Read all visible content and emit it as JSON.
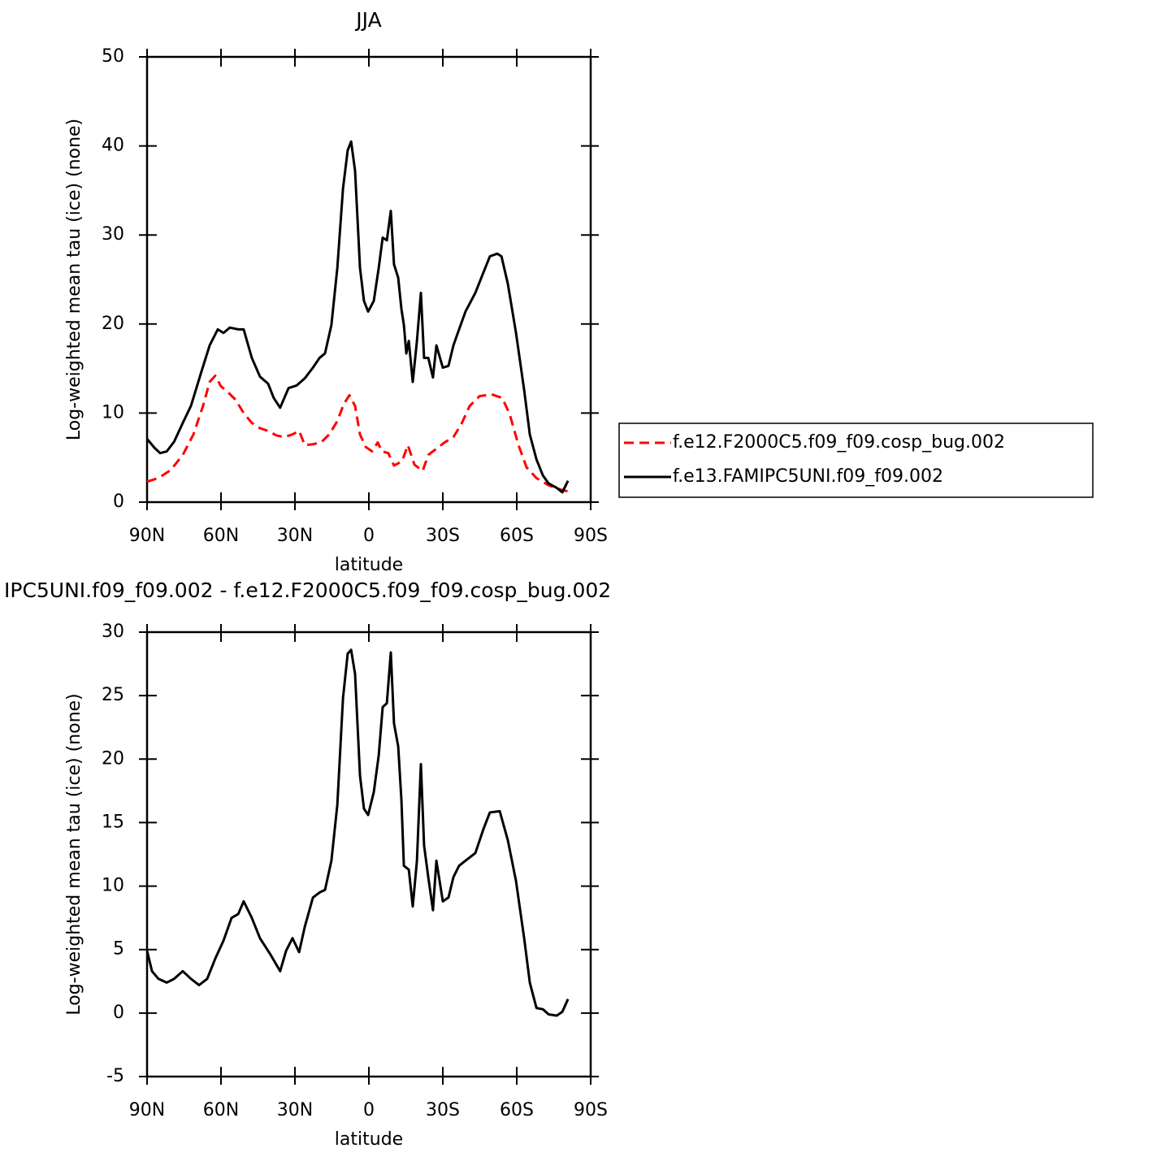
{
  "chart_data": [
    {
      "type": "line",
      "title": "JJA",
      "xlabel": "latitude",
      "ylabel": "Log-weighted mean tau (ice) (none)",
      "xlim": [
        90,
        -90
      ],
      "xticks": [
        {
          "value": 90,
          "label": "90N"
        },
        {
          "value": 60,
          "label": "60N"
        },
        {
          "value": 30,
          "label": "30N"
        },
        0,
        {
          "value": -30,
          "label": "30S"
        },
        {
          "value": -60,
          "label": "60S"
        },
        {
          "value": -90,
          "label": "90S"
        }
      ],
      "ylim": [
        0,
        50
      ],
      "yticks": [
        0,
        10,
        20,
        30,
        40,
        50
      ],
      "legend": "right",
      "series": [
        {
          "name": "f.e12.F2000C5.f09_f09.cosp_bug.002",
          "color": "#ff0000",
          "style": "dashed",
          "x": [
            90,
            85.4,
            80.4,
            75.5,
            71.2,
            67.3,
            64.6,
            62.3,
            60,
            57.4,
            54.1,
            50.8,
            47.5,
            44.2,
            40.9,
            37.6,
            34.3,
            31,
            28.3,
            26,
            22.7,
            19.4,
            16.1,
            12.8,
            10.2,
            7.9,
            5.6,
            3.6,
            1.3,
            -1.3,
            -3.6,
            -5.3,
            -7.9,
            -10.2,
            -13.5,
            -15.8,
            -18.5,
            -21.8,
            -24.1,
            -27.4,
            -30.7,
            -34.3,
            -37.6,
            -40.9,
            -44.9,
            -49.8,
            -54.1,
            -57.1,
            -60.7,
            -64,
            -68,
            -72.9,
            -77.9,
            -80.8
          ],
          "values": [
            2.3,
            2.7,
            3.6,
            5.3,
            7.6,
            10.8,
            13.5,
            14.2,
            13,
            12.4,
            11.5,
            10,
            8.9,
            8.3,
            8,
            7.5,
            7.3,
            7.6,
            8,
            6.4,
            6.5,
            6.7,
            7.6,
            9.1,
            11,
            12,
            10.8,
            7.6,
            6.2,
            5.7,
            6.7,
            5.7,
            5.5,
            4.1,
            4.6,
            6.4,
            4.2,
            3.5,
            5.3,
            6,
            6.7,
            7.3,
            8.8,
            10.8,
            11.9,
            12.1,
            11.7,
            9.9,
            6.4,
            3.9,
            2.7,
            1.9,
            1.4,
            1.2
          ]
        },
        {
          "name": "f.e13.FAMIPC5UNI.f09_f09.002",
          "color": "#000000",
          "style": "solid",
          "x": [
            90,
            87,
            84.7,
            82,
            79,
            75.5,
            72.2,
            68,
            64.6,
            61.3,
            59,
            56.4,
            53,
            50.8,
            47.5,
            44.2,
            40.9,
            38.6,
            36,
            32.6,
            29.3,
            26,
            22.7,
            20,
            17.8,
            15.2,
            12.8,
            10.5,
            8.6,
            7.2,
            5.6,
            3.6,
            2,
            0.3,
            -2,
            -4,
            -5.6,
            -7.3,
            -8.9,
            -10.2,
            -11.9,
            -13.2,
            -14.2,
            -15.2,
            -16.2,
            -17.8,
            -19.5,
            -21.1,
            -22.4,
            -24.1,
            -26,
            -27.4,
            -30,
            -32.3,
            -34.3,
            -36.6,
            -39.2,
            -43.2,
            -46.5,
            -49.1,
            -52.1,
            -53.8,
            -56.4,
            -59.7,
            -63,
            -65.3,
            -68,
            -70.6,
            -72.9,
            -76.2,
            -78.5,
            -80.8
          ],
          "values": [
            7.1,
            6.1,
            5.5,
            5.7,
            6.8,
            8.9,
            10.8,
            14.6,
            17.6,
            19.4,
            19,
            19.6,
            19.4,
            19.4,
            16.2,
            14.1,
            13.3,
            11.7,
            10.6,
            12.8,
            13.1,
            13.9,
            15.1,
            16.2,
            16.7,
            19.9,
            26.3,
            35.2,
            39.5,
            40.5,
            37.2,
            26.3,
            22.6,
            21.4,
            22.6,
            26.3,
            29.7,
            29.4,
            32.7,
            26.7,
            25.2,
            21.7,
            19.9,
            16.7,
            18.1,
            13.5,
            18.1,
            23.5,
            16.2,
            16.2,
            14,
            17.6,
            15.1,
            15.3,
            17.6,
            19.4,
            21.4,
            23.5,
            25.8,
            27.6,
            27.9,
            27.6,
            24.5,
            19,
            12.6,
            7.6,
            4.8,
            3,
            2.1,
            1.6,
            1.1,
            2.4
          ]
        }
      ]
    },
    {
      "type": "line",
      "title": "IPC5UNI.f09_f09.002 - f.e12.F2000C5.f09_f09.cosp_bug.002",
      "xlabel": "latitude",
      "ylabel": "Log-weighted mean tau (ice) (none)",
      "xlim": [
        90,
        -90
      ],
      "xticks": [
        {
          "value": 90,
          "label": "90N"
        },
        {
          "value": 60,
          "label": "60N"
        },
        {
          "value": 30,
          "label": "30N"
        },
        0,
        {
          "value": -30,
          "label": "30S"
        },
        {
          "value": -60,
          "label": "60S"
        },
        {
          "value": -90,
          "label": "90S"
        }
      ],
      "ylim": [
        -5,
        30
      ],
      "yticks": [
        -5,
        0,
        5,
        10,
        15,
        20,
        25,
        30
      ],
      "color": "#000000",
      "x": [
        90,
        88,
        85.4,
        82,
        79,
        75.5,
        72.2,
        68.9,
        65.6,
        62.3,
        59,
        55.7,
        53,
        50.8,
        47.5,
        44.2,
        39.9,
        36,
        33.6,
        31,
        28.3,
        26,
        22.7,
        20,
        17.8,
        15.2,
        12.8,
        10.5,
        8.6,
        7.2,
        5.6,
        3.6,
        2,
        0.3,
        -2,
        -4,
        -5.6,
        -7.3,
        -8.9,
        -10.2,
        -11.9,
        -13.2,
        -14.2,
        -16.2,
        -17.8,
        -19.5,
        -21.1,
        -22.4,
        -24.1,
        -26,
        -27.4,
        -30,
        -32.3,
        -34.3,
        -36.6,
        -39.2,
        -43.2,
        -46.5,
        -49.1,
        -53.1,
        -56.4,
        -59.7,
        -63,
        -65.3,
        -68,
        -70.6,
        -72.9,
        -76.2,
        -78.5,
        -80.8
      ],
      "values": [
        4.9,
        3.3,
        2.7,
        2.4,
        2.7,
        3.3,
        2.7,
        2.2,
        2.7,
        4.3,
        5.7,
        7.5,
        7.8,
        8.8,
        7.5,
        5.9,
        4.6,
        3.3,
        4.9,
        5.9,
        4.8,
        6.8,
        9.1,
        9.5,
        9.7,
        12,
        16.4,
        24.8,
        28.3,
        28.6,
        26.7,
        18.7,
        16.1,
        15.6,
        17.4,
        20.3,
        24.1,
        24.4,
        28.4,
        22.8,
        21,
        16.8,
        11.6,
        11.3,
        8.4,
        12,
        19.6,
        13.2,
        10.7,
        8.1,
        12,
        8.8,
        9.1,
        10.7,
        11.6,
        12,
        12.6,
        14.5,
        15.8,
        15.9,
        13.6,
        10.4,
        5.9,
        2.4,
        0.4,
        0.3,
        -0.1,
        -0.2,
        0.1,
        1.1
      ]
    }
  ]
}
